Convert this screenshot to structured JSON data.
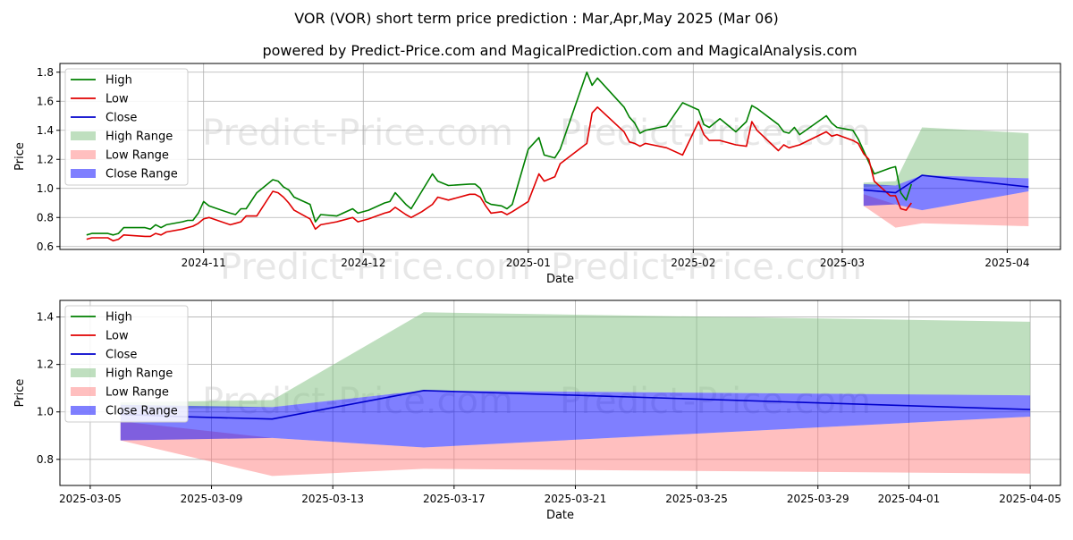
{
  "title": "VOR (VOR) short term price prediction : Mar,Apr,May 2025 (Mar 06)",
  "subtitle": "powered by Predict-Price.com and MagicalPrediction.com and MagicalAnalysis.com",
  "watermark": "Predict-Price.com",
  "colors": {
    "high": "#008000",
    "low": "#e00000",
    "close": "#0000cc",
    "high_range": "#80c080",
    "low_range": "#ff8080",
    "close_range": "#0000ff"
  },
  "legend": {
    "high": "High",
    "low": "Low",
    "close": "Close",
    "high_range": "High Range",
    "low_range": "Low Range",
    "close_range": "Close Range"
  },
  "chart_data": [
    {
      "type": "line",
      "xlabel": "Date",
      "ylabel": "Price",
      "xlim": [
        "2024-10-05",
        "2025-04-11"
      ],
      "ylim": [
        0.58,
        1.86
      ],
      "xticks": [
        "2024-11-01",
        "2024-12-01",
        "2025-01-01",
        "2025-02-01",
        "2025-03-01",
        "2025-04-01"
      ],
      "xtick_labels": [
        "2024-11",
        "2024-12",
        "2025-01",
        "2025-02",
        "2025-03",
        "2025-04"
      ],
      "yticks": [
        0.6,
        0.8,
        1.0,
        1.2,
        1.4,
        1.6,
        1.8
      ],
      "grid": true,
      "legend_position": "top-left",
      "series": [
        {
          "name": "High",
          "key": "high",
          "points": [
            [
              "2024-10-10",
              0.68
            ],
            [
              "2024-10-11",
              0.69
            ],
            [
              "2024-10-14",
              0.69
            ],
            [
              "2024-10-15",
              0.68
            ],
            [
              "2024-10-16",
              0.69
            ],
            [
              "2024-10-17",
              0.73
            ],
            [
              "2024-10-21",
              0.73
            ],
            [
              "2024-10-22",
              0.72
            ],
            [
              "2024-10-23",
              0.75
            ],
            [
              "2024-10-24",
              0.73
            ],
            [
              "2024-10-25",
              0.75
            ],
            [
              "2024-10-28",
              0.77
            ],
            [
              "2024-10-29",
              0.78
            ],
            [
              "2024-10-30",
              0.78
            ],
            [
              "2024-10-31",
              0.83
            ],
            [
              "2024-11-01",
              0.91
            ],
            [
              "2024-11-02",
              0.88
            ],
            [
              "2024-11-06",
              0.83
            ],
            [
              "2024-11-07",
              0.82
            ],
            [
              "2024-11-08",
              0.86
            ],
            [
              "2024-11-09",
              0.86
            ],
            [
              "2024-11-11",
              0.97
            ],
            [
              "2024-11-14",
              1.06
            ],
            [
              "2024-11-15",
              1.05
            ],
            [
              "2024-11-16",
              1.01
            ],
            [
              "2024-11-17",
              0.99
            ],
            [
              "2024-11-18",
              0.94
            ],
            [
              "2024-11-21",
              0.89
            ],
            [
              "2024-11-22",
              0.77
            ],
            [
              "2024-11-23",
              0.82
            ],
            [
              "2024-11-26",
              0.81
            ],
            [
              "2024-11-29",
              0.86
            ],
            [
              "2024-11-30",
              0.83
            ],
            [
              "2024-12-02",
              0.85
            ],
            [
              "2024-12-05",
              0.9
            ],
            [
              "2024-12-06",
              0.91
            ],
            [
              "2024-12-07",
              0.97
            ],
            [
              "2024-12-09",
              0.89
            ],
            [
              "2024-12-10",
              0.86
            ],
            [
              "2024-12-12",
              0.98
            ],
            [
              "2024-12-14",
              1.1
            ],
            [
              "2024-12-15",
              1.05
            ],
            [
              "2024-12-17",
              1.02
            ],
            [
              "2024-12-21",
              1.03
            ],
            [
              "2024-12-22",
              1.03
            ],
            [
              "2024-12-23",
              1.0
            ],
            [
              "2024-12-24",
              0.91
            ],
            [
              "2024-12-25",
              0.89
            ],
            [
              "2024-12-27",
              0.88
            ],
            [
              "2024-12-28",
              0.86
            ],
            [
              "2024-12-29",
              0.89
            ],
            [
              "2025-01-01",
              1.27
            ],
            [
              "2025-01-03",
              1.35
            ],
            [
              "2025-01-04",
              1.23
            ],
            [
              "2025-01-06",
              1.21
            ],
            [
              "2025-01-07",
              1.27
            ],
            [
              "2025-01-12",
              1.8
            ],
            [
              "2025-01-13",
              1.71
            ],
            [
              "2025-01-14",
              1.76
            ],
            [
              "2025-01-19",
              1.56
            ],
            [
              "2025-01-20",
              1.49
            ],
            [
              "2025-01-21",
              1.45
            ],
            [
              "2025-01-22",
              1.38
            ],
            [
              "2025-01-23",
              1.4
            ],
            [
              "2025-01-27",
              1.43
            ],
            [
              "2025-01-30",
              1.59
            ],
            [
              "2025-02-02",
              1.54
            ],
            [
              "2025-02-03",
              1.44
            ],
            [
              "2025-02-04",
              1.42
            ],
            [
              "2025-02-06",
              1.48
            ],
            [
              "2025-02-09",
              1.39
            ],
            [
              "2025-02-11",
              1.46
            ],
            [
              "2025-02-12",
              1.57
            ],
            [
              "2025-02-13",
              1.55
            ],
            [
              "2025-02-17",
              1.44
            ],
            [
              "2025-02-18",
              1.39
            ],
            [
              "2025-02-19",
              1.38
            ],
            [
              "2025-02-20",
              1.42
            ],
            [
              "2025-02-21",
              1.37
            ],
            [
              "2025-02-26",
              1.5
            ],
            [
              "2025-02-27",
              1.45
            ],
            [
              "2025-02-28",
              1.42
            ],
            [
              "2025-03-03",
              1.4
            ],
            [
              "2025-03-04",
              1.34
            ],
            [
              "2025-03-05",
              1.26
            ],
            [
              "2025-03-06",
              1.18
            ],
            [
              "2025-03-07",
              1.1
            ],
            [
              "2025-03-10",
              1.14
            ],
            [
              "2025-03-11",
              1.15
            ],
            [
              "2025-03-12",
              0.97
            ],
            [
              "2025-03-13",
              0.92
            ],
            [
              "2025-03-14",
              1.03
            ]
          ]
        },
        {
          "name": "Low",
          "key": "low",
          "points": [
            [
              "2024-10-10",
              0.65
            ],
            [
              "2024-10-11",
              0.66
            ],
            [
              "2024-10-14",
              0.66
            ],
            [
              "2024-10-15",
              0.64
            ],
            [
              "2024-10-16",
              0.65
            ],
            [
              "2024-10-17",
              0.68
            ],
            [
              "2024-10-21",
              0.67
            ],
            [
              "2024-10-22",
              0.67
            ],
            [
              "2024-10-23",
              0.69
            ],
            [
              "2024-10-24",
              0.68
            ],
            [
              "2024-10-25",
              0.7
            ],
            [
              "2024-10-28",
              0.72
            ],
            [
              "2024-10-29",
              0.73
            ],
            [
              "2024-10-30",
              0.74
            ],
            [
              "2024-10-31",
              0.76
            ],
            [
              "2024-11-01",
              0.79
            ],
            [
              "2024-11-02",
              0.8
            ],
            [
              "2024-11-06",
              0.75
            ],
            [
              "2024-11-07",
              0.76
            ],
            [
              "2024-11-08",
              0.77
            ],
            [
              "2024-11-09",
              0.81
            ],
            [
              "2024-11-11",
              0.81
            ],
            [
              "2024-11-14",
              0.98
            ],
            [
              "2024-11-15",
              0.97
            ],
            [
              "2024-11-16",
              0.94
            ],
            [
              "2024-11-17",
              0.9
            ],
            [
              "2024-11-18",
              0.85
            ],
            [
              "2024-11-21",
              0.79
            ],
            [
              "2024-11-22",
              0.72
            ],
            [
              "2024-11-23",
              0.75
            ],
            [
              "2024-11-26",
              0.77
            ],
            [
              "2024-11-29",
              0.8
            ],
            [
              "2024-11-30",
              0.77
            ],
            [
              "2024-12-02",
              0.79
            ],
            [
              "2024-12-05",
              0.83
            ],
            [
              "2024-12-06",
              0.84
            ],
            [
              "2024-12-07",
              0.87
            ],
            [
              "2024-12-09",
              0.82
            ],
            [
              "2024-12-10",
              0.8
            ],
            [
              "2024-12-12",
              0.84
            ],
            [
              "2024-12-14",
              0.89
            ],
            [
              "2024-12-15",
              0.94
            ],
            [
              "2024-12-17",
              0.92
            ],
            [
              "2024-12-21",
              0.96
            ],
            [
              "2024-12-22",
              0.96
            ],
            [
              "2024-12-23",
              0.94
            ],
            [
              "2024-12-24",
              0.88
            ],
            [
              "2024-12-25",
              0.83
            ],
            [
              "2024-12-27",
              0.84
            ],
            [
              "2024-12-28",
              0.82
            ],
            [
              "2024-12-29",
              0.84
            ],
            [
              "2025-01-01",
              0.91
            ],
            [
              "2025-01-03",
              1.1
            ],
            [
              "2025-01-04",
              1.05
            ],
            [
              "2025-01-06",
              1.08
            ],
            [
              "2025-01-07",
              1.17
            ],
            [
              "2025-01-12",
              1.31
            ],
            [
              "2025-01-13",
              1.52
            ],
            [
              "2025-01-14",
              1.56
            ],
            [
              "2025-01-19",
              1.39
            ],
            [
              "2025-01-20",
              1.32
            ],
            [
              "2025-01-21",
              1.31
            ],
            [
              "2025-01-22",
              1.29
            ],
            [
              "2025-01-23",
              1.31
            ],
            [
              "2025-01-27",
              1.28
            ],
            [
              "2025-01-30",
              1.23
            ],
            [
              "2025-02-02",
              1.46
            ],
            [
              "2025-02-03",
              1.37
            ],
            [
              "2025-02-04",
              1.33
            ],
            [
              "2025-02-06",
              1.33
            ],
            [
              "2025-02-09",
              1.3
            ],
            [
              "2025-02-11",
              1.29
            ],
            [
              "2025-02-12",
              1.46
            ],
            [
              "2025-02-13",
              1.4
            ],
            [
              "2025-02-17",
              1.26
            ],
            [
              "2025-02-18",
              1.3
            ],
            [
              "2025-02-19",
              1.28
            ],
            [
              "2025-02-20",
              1.29
            ],
            [
              "2025-02-21",
              1.3
            ],
            [
              "2025-02-26",
              1.39
            ],
            [
              "2025-02-27",
              1.36
            ],
            [
              "2025-02-28",
              1.37
            ],
            [
              "2025-03-03",
              1.33
            ],
            [
              "2025-03-04",
              1.31
            ],
            [
              "2025-03-05",
              1.24
            ],
            [
              "2025-03-06",
              1.2
            ],
            [
              "2025-03-07",
              1.05
            ],
            [
              "2025-03-10",
              0.95
            ],
            [
              "2025-03-11",
              0.95
            ],
            [
              "2025-03-12",
              0.86
            ],
            [
              "2025-03-13",
              0.85
            ],
            [
              "2025-03-14",
              0.9
            ]
          ]
        },
        {
          "name": "Close",
          "key": "close",
          "points": [
            [
              "2025-03-05",
              0.99
            ],
            [
              "2025-03-11",
              0.97
            ],
            [
              "2025-03-16",
              1.09
            ],
            [
              "2025-04-05",
              1.01
            ]
          ]
        }
      ],
      "bands": [
        {
          "name": "High Range",
          "key": "high_range",
          "x": [
            "2025-03-05",
            "2025-03-11",
            "2025-03-16",
            "2025-04-05"
          ],
          "lower": [
            1.01,
            1.02,
            1.09,
            1.07
          ],
          "upper": [
            1.04,
            1.05,
            1.42,
            1.38
          ]
        },
        {
          "name": "Low Range",
          "key": "low_range",
          "x": [
            "2025-03-05",
            "2025-03-11",
            "2025-03-16",
            "2025-04-05"
          ],
          "lower": [
            0.88,
            0.73,
            0.76,
            0.74
          ],
          "upper": [
            0.96,
            0.89,
            0.85,
            0.98
          ]
        },
        {
          "name": "Close Range",
          "key": "close_range",
          "x": [
            "2025-03-05",
            "2025-03-11",
            "2025-03-16",
            "2025-04-05"
          ],
          "lower": [
            0.88,
            0.89,
            0.85,
            0.98
          ],
          "upper": [
            1.03,
            1.02,
            1.09,
            1.07
          ]
        }
      ]
    },
    {
      "type": "line",
      "xlabel": "Date",
      "ylabel": "Price",
      "xlim": [
        "2025-03-04",
        "2025-04-06"
      ],
      "ylim": [
        0.69,
        1.47
      ],
      "xticks": [
        "2025-03-05",
        "2025-03-09",
        "2025-03-13",
        "2025-03-17",
        "2025-03-21",
        "2025-03-25",
        "2025-03-29",
        "2025-04-01",
        "2025-04-05"
      ],
      "xtick_labels": [
        "2025-03-05",
        "2025-03-09",
        "2025-03-13",
        "2025-03-17",
        "2025-03-21",
        "2025-03-25",
        "2025-03-29",
        "2025-04-01",
        "2025-04-05"
      ],
      "yticks": [
        0.8,
        1.0,
        1.2,
        1.4
      ],
      "grid": true,
      "legend_position": "top-left",
      "series": [
        {
          "name": "Close",
          "key": "close",
          "points": [
            [
              "2025-03-06",
              0.99
            ],
            [
              "2025-03-08",
              0.98
            ],
            [
              "2025-03-11",
              0.97
            ],
            [
              "2025-03-16",
              1.09
            ],
            [
              "2025-04-05",
              1.01
            ]
          ]
        }
      ],
      "bands": [
        {
          "name": "High Range",
          "key": "high_range",
          "x": [
            "2025-03-06",
            "2025-03-11",
            "2025-03-16",
            "2025-04-05"
          ],
          "lower": [
            1.01,
            1.02,
            1.09,
            1.07
          ],
          "upper": [
            1.04,
            1.05,
            1.42,
            1.38
          ]
        },
        {
          "name": "Low Range",
          "key": "low_range",
          "x": [
            "2025-03-06",
            "2025-03-11",
            "2025-03-16",
            "2025-04-05"
          ],
          "lower": [
            0.88,
            0.73,
            0.76,
            0.74
          ],
          "upper": [
            0.96,
            0.89,
            0.85,
            0.98
          ]
        },
        {
          "name": "Close Range",
          "key": "close_range",
          "x": [
            "2025-03-06",
            "2025-03-11",
            "2025-03-16",
            "2025-04-05"
          ],
          "lower": [
            0.88,
            0.89,
            0.85,
            0.98
          ],
          "upper": [
            1.03,
            1.02,
            1.09,
            1.07
          ]
        }
      ]
    }
  ]
}
